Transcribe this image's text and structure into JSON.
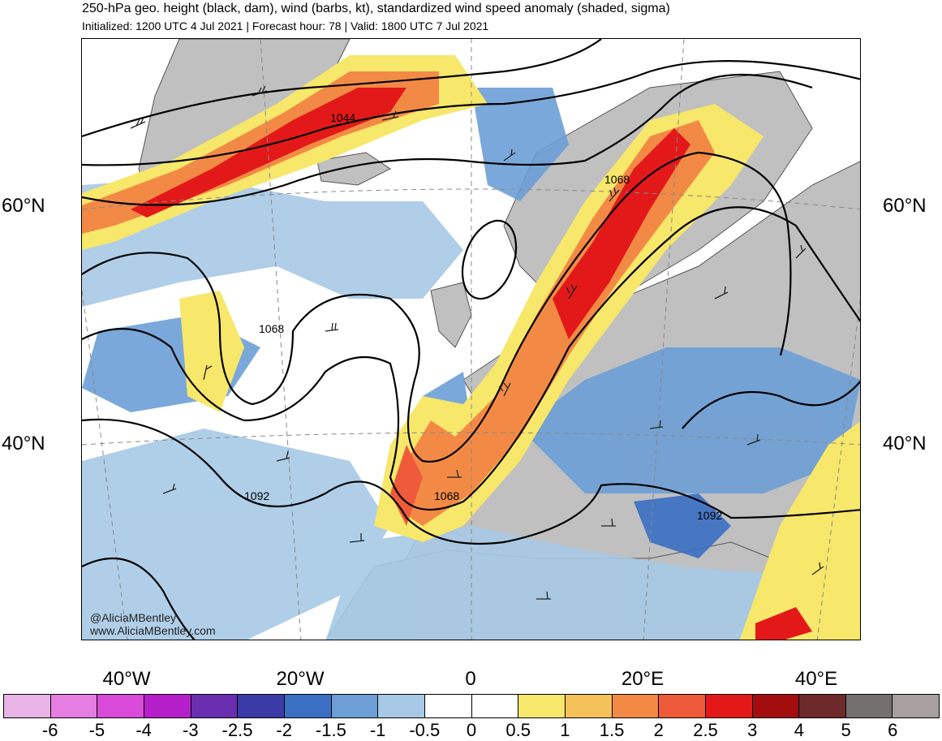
{
  "header": {
    "title": "250-hPa geo. height (black, dam), wind (barbs, kt), standardized wind speed anomaly (shaded, sigma)",
    "subtitle": "Initialized: 1200 UTC 4 Jul 2021 | Forecast hour: 78 | Valid: 1800 UTC 7 Jul 2021"
  },
  "map": {
    "lat_labels": [
      "60°N",
      "40°N"
    ],
    "lon_labels": [
      "40°W",
      "20°W",
      "0",
      "20°E",
      "40°E"
    ],
    "contour_labels": [
      "1044",
      "1068",
      "1068",
      "1068",
      "1092",
      "1092"
    ],
    "credit_handle": "@AliciaMBentley",
    "credit_site": "www.AliciaMBentley.com",
    "colors": {
      "land": "#c0c0c0",
      "coast": "#555555",
      "contour": "#000000"
    }
  },
  "colorbar": {
    "labels": [
      "-6",
      "-5",
      "-4",
      "-3",
      "-2.5",
      "-2",
      "-1.5",
      "-1",
      "-0.5",
      "0",
      "0.5",
      "1",
      "1.5",
      "2",
      "2.5",
      "3",
      "4",
      "5",
      "6"
    ],
    "colors": [
      "#e8b4e6",
      "#e57ee0",
      "#d94bd8",
      "#b51fc9",
      "#6a2fb0",
      "#3b3ba8",
      "#3a6fc4",
      "#6d9fd6",
      "#a7c9e6",
      "#ffffff",
      "#ffffff",
      "#f7e76a",
      "#f5c25a",
      "#f28a45",
      "#ee5a3a",
      "#e31919",
      "#a30d10",
      "#6e2a2a",
      "#747070",
      "#a8a0a0"
    ]
  }
}
